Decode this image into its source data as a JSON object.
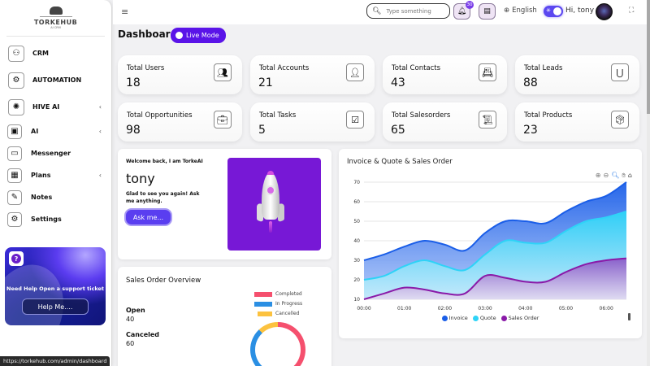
{
  "sidebar": {
    "logo": {
      "name": "TORKEHUB",
      "sub": "AI CRM"
    },
    "items": [
      {
        "label": "CRM",
        "icon": "crm-icon",
        "glyph": "⚇",
        "chevron": false
      },
      {
        "label": "AUTOMATION",
        "icon": "automation-icon",
        "glyph": "⚙",
        "chevron": false
      },
      {
        "label": "HIVE AI",
        "icon": "hive-ai-icon",
        "glyph": "✺",
        "chevron": true
      },
      {
        "label": "AI",
        "icon": "ai-chip-icon",
        "glyph": "▣",
        "chevron": true
      },
      {
        "label": "Messenger",
        "icon": "messenger-icon",
        "glyph": "▭",
        "chevron": false
      },
      {
        "label": "Plans",
        "icon": "plans-icon",
        "glyph": "▦",
        "chevron": true
      },
      {
        "label": "Notes",
        "icon": "notes-icon",
        "glyph": "✎",
        "chevron": false
      },
      {
        "label": "Settings",
        "icon": "settings-icon",
        "glyph": "⚙",
        "chevron": false
      }
    ],
    "chevron_glyph": "‹",
    "help": {
      "text": "Need Help Open a support ticket",
      "button": "Help Me....",
      "icon_glyph": "?"
    }
  },
  "status_bar": {
    "url": "https://torkehub.com/admin/dashboard"
  },
  "header": {
    "menu_glyph": "≡",
    "search": {
      "placeholder": "Type something",
      "value": "",
      "icon_glyph": "🔍︎"
    },
    "notifications": {
      "glyph": "🔔︎",
      "badge": "30"
    },
    "chat_glyph": "▤",
    "language": {
      "globe_glyph": "⊕",
      "label": "English"
    },
    "theme_toggle": {
      "on": true,
      "glyph": "✳"
    },
    "greeting": "Hi, tony",
    "fullscreen_glyph": "⛶"
  },
  "page": {
    "title": "Dashboard",
    "live_mode": "Live Mode",
    "live_glyph": "●"
  },
  "stats": [
    {
      "label": "Total Users",
      "value": "18",
      "icon": "users-icon",
      "glyph": "👥︎"
    },
    {
      "label": "Total Accounts",
      "value": "21",
      "icon": "account-icon",
      "glyph": "👤︎"
    },
    {
      "label": "Total Contacts",
      "value": "43",
      "icon": "contacts-book-icon",
      "glyph": "📇︎"
    },
    {
      "label": "Total Leads",
      "value": "88",
      "icon": "lead-magnet-icon",
      "glyph": "⋃"
    },
    {
      "label": "Total Opportunities",
      "value": "98",
      "icon": "opportunity-icon",
      "glyph": "💼︎"
    },
    {
      "label": "Total Tasks",
      "value": "5",
      "icon": "tasks-icon",
      "glyph": "☑"
    },
    {
      "label": "Total Salesorders",
      "value": "65",
      "icon": "salesorder-icon",
      "glyph": "📜︎"
    },
    {
      "label": "Total Products",
      "value": "23",
      "icon": "products-icon",
      "glyph": "📦︎"
    }
  ],
  "welcome": {
    "intro": "Welcome back, I am TorkeAI",
    "name": "tony",
    "message": "Glad to see you again! Ask me anything.",
    "button": "Ask me..."
  },
  "sales_overview": {
    "title": "Sales Order Overview",
    "metrics": [
      {
        "label": "Open",
        "value": "40"
      },
      {
        "label": "Canceled",
        "value": "60"
      }
    ],
    "legend": [
      {
        "label": "Completed",
        "color": "#f5506e"
      },
      {
        "label": "In Progress",
        "color": "#2b8fe3"
      },
      {
        "label": "Cancelled",
        "color": "#fcc23f"
      }
    ]
  },
  "chart_card": {
    "title": "Invoice & Quote & Sales Order",
    "toolbar": [
      {
        "name": "zoom-in-icon",
        "glyph": "⊕"
      },
      {
        "name": "zoom-out-icon",
        "glyph": "⊖"
      },
      {
        "name": "selection-zoom-icon",
        "glyph": "🔍︎"
      },
      {
        "name": "pan-hand-icon",
        "glyph": "✋︎"
      },
      {
        "name": "reset-home-icon",
        "glyph": "⌂"
      }
    ]
  },
  "chart_data": {
    "type": "area",
    "title": "Invoice & Quote & Sales Order",
    "xlabel": "",
    "ylabel": "",
    "x": [
      "00:00",
      "00:30",
      "01:00",
      "01:30",
      "02:00",
      "02:30",
      "03:00",
      "03:30",
      "04:00",
      "04:30",
      "05:00",
      "05:30",
      "06:00",
      "06:30"
    ],
    "x_ticks": [
      "00:00",
      "01:00",
      "02:00",
      "03:00",
      "04:00",
      "05:00",
      "06:00"
    ],
    "y_ticks": [
      10,
      20,
      30,
      40,
      50,
      60,
      70
    ],
    "ylim": [
      10,
      70
    ],
    "grid": true,
    "legend_position": "bottom",
    "series": [
      {
        "name": "Invoice",
        "color": "#1a5ee8",
        "values": [
          30,
          33,
          37,
          40,
          38,
          35,
          44,
          50,
          50,
          49,
          55,
          60,
          63,
          70
        ]
      },
      {
        "name": "Quote",
        "color": "#2ed3f7",
        "values": [
          20,
          22,
          27,
          30,
          27,
          25,
          33,
          40,
          39,
          39,
          45,
          50,
          52,
          55
        ]
      },
      {
        "name": "Sales Order",
        "color": "#8a1aa8",
        "values": [
          10,
          13,
          16,
          15,
          13,
          13,
          22,
          21,
          19,
          19,
          24,
          28,
          30,
          31
        ]
      }
    ]
  }
}
